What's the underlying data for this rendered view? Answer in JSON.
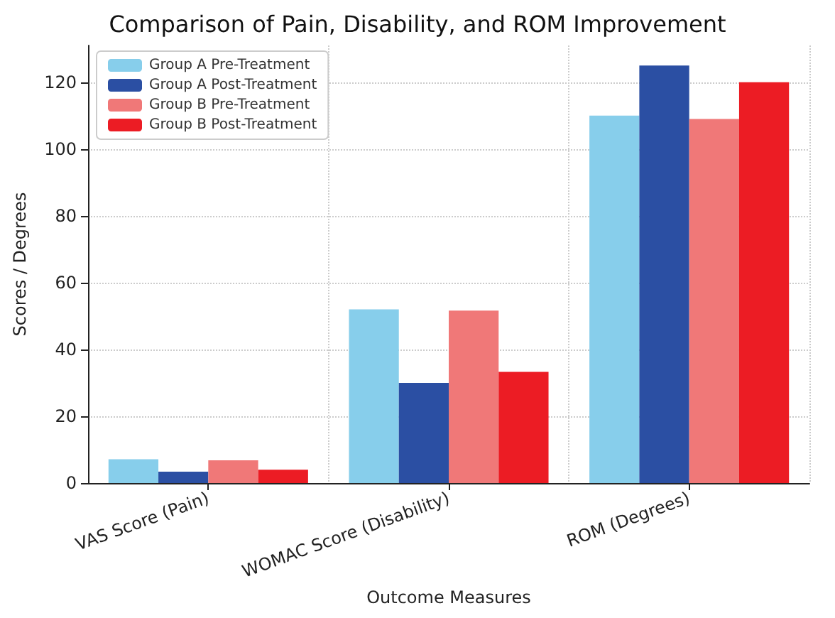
{
  "chart_data": {
    "type": "bar",
    "title": "Comparison of Pain, Disability, and ROM Improvement",
    "xlabel": "Outcome Measures",
    "ylabel": "Scores / Degrees",
    "categories": [
      "VAS Score (Pain)",
      "WOMAC Score (Disability)",
      "ROM (Degrees)"
    ],
    "series": [
      {
        "name": "Group A Pre-Treatment",
        "color": "#87ceeb",
        "values": [
          7.1,
          52,
          110
        ]
      },
      {
        "name": "Group A Post-Treatment",
        "color": "#2b4fa3",
        "values": [
          3.4,
          30,
          125
        ]
      },
      {
        "name": "Group B Pre-Treatment",
        "color": "#f07878",
        "values": [
          6.8,
          51.6,
          109
        ]
      },
      {
        "name": "Group B Post-Treatment",
        "color": "#ec1c24",
        "values": [
          4,
          33.3,
          120
        ]
      }
    ],
    "ylim": [
      0,
      131
    ],
    "yticks": [
      0,
      20,
      40,
      60,
      80,
      100,
      120
    ],
    "grid": true,
    "legend": "top left"
  }
}
